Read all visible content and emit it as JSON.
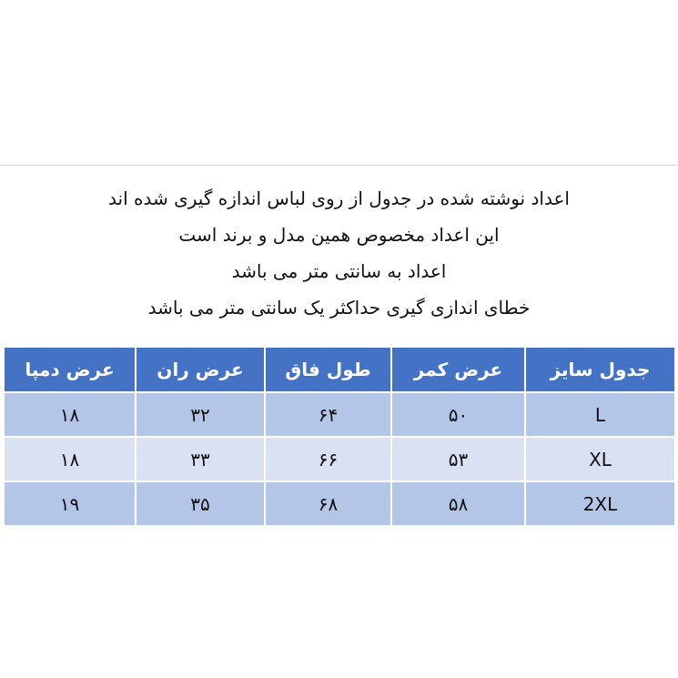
{
  "notes": [
    "اعداد نوشته شده در جدول از روی لباس اندازه گیری شده اند",
    "این اعداد مخصوص همین مدل و برند است",
    "اعداد به سانتی متر می باشد",
    "خطای اندازی گیری حداکثر یک سانتی متر می باشد"
  ],
  "table": {
    "headers": [
      "جدول سایز",
      "عرض کمر",
      "طول فاق",
      "عرض ران",
      "عرض دمپا"
    ],
    "rows": [
      [
        "L",
        "۵۰",
        "۶۴",
        "۳۲",
        "۱۸"
      ],
      [
        "XL",
        "۵۳",
        "۶۶",
        "۳۳",
        "۱۸"
      ],
      [
        "2XL",
        "۵۸",
        "۶۸",
        "۳۵",
        "۱۹"
      ]
    ]
  },
  "colors": {
    "header": "#4472C4",
    "row_dark": "#B4C6E7",
    "row_light": "#D9E1F2"
  }
}
